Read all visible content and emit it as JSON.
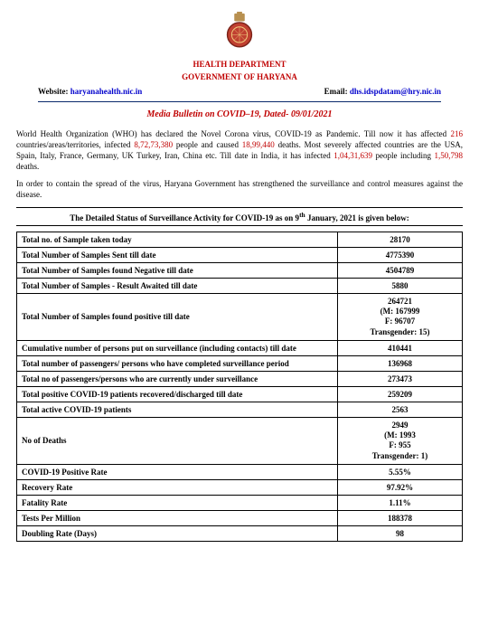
{
  "header": {
    "dept": "HEALTH DEPARTMENT",
    "gov": "GOVERNMENT OF HARYANA",
    "website_label": "Website:",
    "website_link": "haryanahealth.nic.in",
    "email_label": "Email:",
    "email_link": "dhs.idspdatam@hry.nic.in"
  },
  "bulletin_title": "Media Bulletin on COVID–19, Dated- 09/01/2021",
  "para1": {
    "p1a": "World Health Organization (WHO) has declared the Novel Corona virus, COVID-19 as Pandemic. Till now it has affected ",
    "countries": "216",
    "p1b": " countries/areas/territories, infected ",
    "infected_world": "8,72,73,380",
    "p1c": " people and caused ",
    "deaths_world": "18,99,440",
    "p1d": " deaths. Most severely affected countries are the USA, Spain, Italy, France, Germany, UK Turkey, Iran, China etc. Till date in India, it has infected ",
    "infected_india": "1,04,31,639",
    "p1e": " people including ",
    "deaths_india": "1,50,798",
    "p1f": " deaths."
  },
  "para2": "In order to contain the spread of the virus, Haryana Government has strengthened the surveillance and control measures against the disease.",
  "status_heading_a": "The Detailed Status of Surveillance Activity for COVID-19 as on 9",
  "status_heading_sup": "th",
  "status_heading_b": " January, 2021 is given below:",
  "table": {
    "rows": [
      {
        "label": "Total no. of Sample taken today",
        "value": "28170"
      },
      {
        "label": "Total Number of Samples Sent till date",
        "value": "4775390"
      },
      {
        "label": "Total Number of Samples found Negative till date",
        "value": "4504789"
      },
      {
        "label": "Total Number of Samples - Result Awaited till date",
        "value": "5880"
      },
      {
        "label": "Total Number of Samples found positive till date",
        "value": "264721",
        "sub": [
          "(M: 167999",
          "F: 96707",
          "Transgender: 15)"
        ]
      },
      {
        "label": "Cumulative number of persons put on surveillance (including contacts) till date",
        "value": "410441"
      },
      {
        "label": "Total number of passengers/ persons who have completed surveillance period",
        "value": "136968"
      },
      {
        "label": "Total no of passengers/persons who are currently under surveillance",
        "value": "273473"
      },
      {
        "label": "Total positive COVID-19 patients recovered/discharged till date",
        "value": "259209"
      },
      {
        "label": "Total active COVID-19 patients",
        "value": "2563"
      },
      {
        "label": "No of Deaths",
        "value": "2949",
        "sub": [
          "(M: 1993",
          "F: 955",
          "Transgender: 1)"
        ]
      },
      {
        "label": "COVID-19 Positive Rate",
        "value": "5.55%"
      },
      {
        "label": "Recovery Rate",
        "value": "97.92%"
      },
      {
        "label": "Fatality Rate",
        "value": "1.11%"
      },
      {
        "label": "Tests Per Million",
        "value": "188378"
      },
      {
        "label": "Doubling Rate (Days)",
        "value": "98"
      }
    ]
  },
  "colors": {
    "brand_red": "#c00000",
    "link_blue": "#0000cc",
    "rule_blue": "#0a2a6b"
  }
}
